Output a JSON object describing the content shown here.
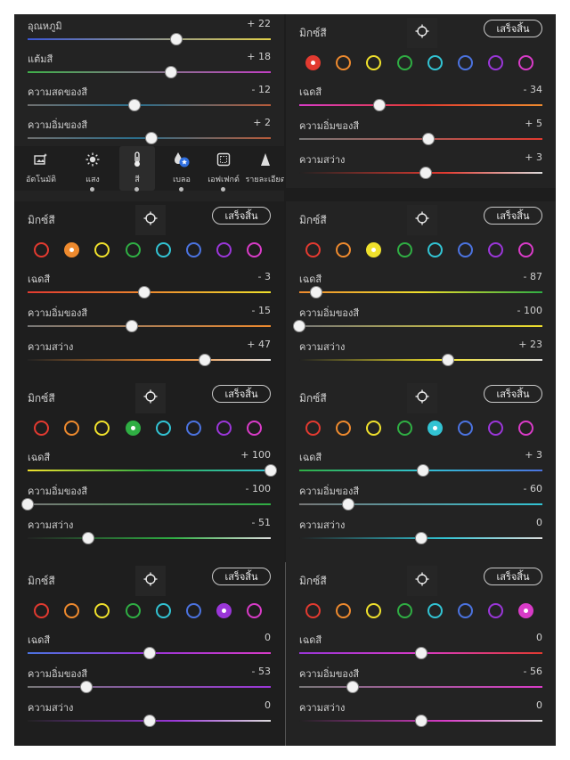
{
  "labels": {
    "mix_title": "มิกซ์สี",
    "done": "เสร็จสิ้น",
    "hue": "เฉดสี",
    "saturation": "ความอิ่มของสี",
    "luminance": "ความสว่าง"
  },
  "swatch_colors": [
    "#e23a30",
    "#ee8a2e",
    "#efe02c",
    "#2fae43",
    "#32c3d3",
    "#4b73e0",
    "#9a36d8",
    "#d83bc7"
  ],
  "first_panel": {
    "rows": [
      {
        "label": "อุณหภูมิ",
        "value": "+ 22",
        "fraction": 0.61
      },
      {
        "label": "แต้มสี",
        "value": "+ 18",
        "fraction": 0.59
      },
      {
        "label": "ความสดของสี",
        "value": "- 12",
        "fraction": 0.44
      },
      {
        "label": "ความอิ่มของสี",
        "value": "+ 2",
        "fraction": 0.51
      }
    ],
    "tools": [
      {
        "label": "อัตโนมัติ",
        "icon": "auto-image-icon"
      },
      {
        "label": "แสง",
        "icon": "sun-icon"
      },
      {
        "label": "สี",
        "icon": "thermometer-icon",
        "active": true
      },
      {
        "label": "เบลอ",
        "icon": "drop-star-icon"
      },
      {
        "label": "เอฟเฟกต์",
        "icon": "effects-icon"
      },
      {
        "label": "รายละเอียด",
        "icon": "triangle-icon"
      }
    ]
  },
  "mix_panels": [
    {
      "selected": 0,
      "rows": [
        {
          "value": "- 34",
          "fraction": 0.33
        },
        {
          "value": "+ 5",
          "fraction": 0.53
        },
        {
          "value": "+ 3",
          "fraction": 0.52
        }
      ]
    },
    {
      "selected": 1,
      "rows": [
        {
          "value": "- 3",
          "fraction": 0.48
        },
        {
          "value": "- 15",
          "fraction": 0.43
        },
        {
          "value": "+ 47",
          "fraction": 0.73
        }
      ]
    },
    {
      "selected": 2,
      "rows": [
        {
          "value": "- 87",
          "fraction": 0.07
        },
        {
          "value": "- 100",
          "fraction": 0.0
        },
        {
          "value": "+ 23",
          "fraction": 0.61
        }
      ]
    },
    {
      "selected": 3,
      "rows": [
        {
          "value": "+ 100",
          "fraction": 1.0
        },
        {
          "value": "- 100",
          "fraction": 0.0
        },
        {
          "value": "- 51",
          "fraction": 0.25
        }
      ]
    },
    {
      "selected": 4,
      "rows": [
        {
          "value": "+ 3",
          "fraction": 0.51
        },
        {
          "value": "- 60",
          "fraction": 0.2
        },
        {
          "value": "0",
          "fraction": 0.5
        }
      ]
    },
    {
      "selected": 6,
      "rows": [
        {
          "value": "0",
          "fraction": 0.5
        },
        {
          "value": "- 53",
          "fraction": 0.24
        },
        {
          "value": "0",
          "fraction": 0.5
        }
      ]
    },
    {
      "selected": 7,
      "rows": [
        {
          "value": "0",
          "fraction": 0.5
        },
        {
          "value": "- 56",
          "fraction": 0.22
        },
        {
          "value": "0",
          "fraction": 0.5
        }
      ]
    }
  ]
}
